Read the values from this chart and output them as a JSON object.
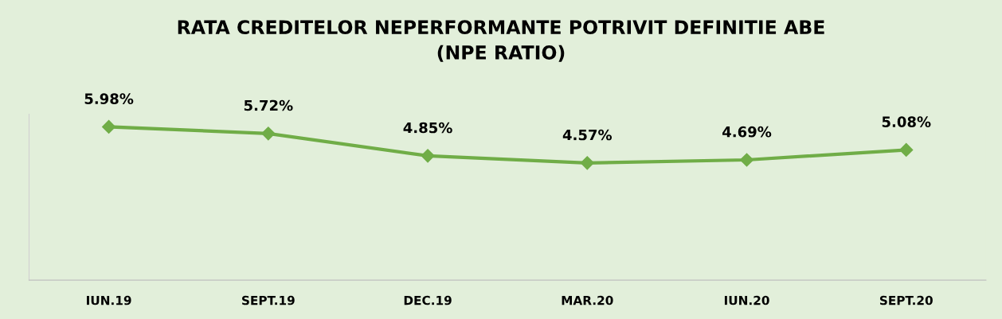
{
  "chart_data": {
    "type": "line",
    "title": "RATA CREDITELOR NEPERFORMANTE POTRIVIT DEFINITIE ABE\n(NPE RATIO)",
    "categories": [
      "IUN.19",
      "SEPT.19",
      "DEC.19",
      "MAR.20",
      "IUN.20",
      "SEPT.20"
    ],
    "series": [
      {
        "color": "#70ad47",
        "values": [
          5.98,
          5.72,
          4.85,
          4.57,
          4.69,
          5.08
        ],
        "value_labels": [
          "5.98%",
          "5.72%",
          "4.85%",
          "4.57%",
          "4.69%",
          "5.08%"
        ]
      }
    ],
    "marker": "diamond",
    "line_style": "solid",
    "grid": false,
    "legend": false,
    "tick_labels": "x"
  }
}
